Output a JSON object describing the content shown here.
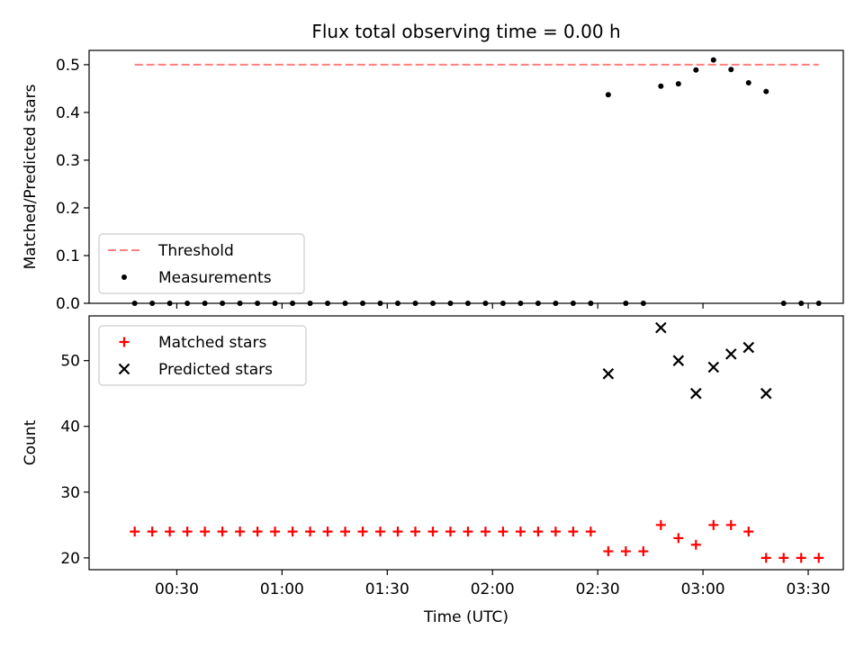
{
  "chart_data": {
    "type": "scatter",
    "title": "Flux total observing time = 0.00 h",
    "xlabel": "Time (UTC)",
    "x_ticks": [
      "00:30",
      "01:00",
      "01:30",
      "02:00",
      "02:30",
      "03:00",
      "03:30"
    ],
    "x_range": [
      "00:05",
      "03:40"
    ],
    "panels": [
      {
        "ylabel": "Matched/Predicted stars",
        "ylim": [
          0.0,
          0.53
        ],
        "y_ticks": [
          "0.0",
          "0.1",
          "0.2",
          "0.3",
          "0.4",
          "0.5"
        ],
        "legend_position": "lower-left",
        "series": [
          {
            "name": "Threshold",
            "type": "line",
            "style": "dashed",
            "color": "#ff7f7f",
            "points": [
              {
                "x": "00:18",
                "y": 0.5
              },
              {
                "x": "03:33",
                "y": 0.5
              }
            ]
          },
          {
            "name": "Measurements",
            "type": "scatter",
            "marker": "dot",
            "color": "#000000",
            "points": [
              {
                "x": "00:18",
                "y": 0.0
              },
              {
                "x": "00:23",
                "y": 0.0
              },
              {
                "x": "00:28",
                "y": 0.0
              },
              {
                "x": "00:33",
                "y": 0.0
              },
              {
                "x": "00:38",
                "y": 0.0
              },
              {
                "x": "00:43",
                "y": 0.0
              },
              {
                "x": "00:48",
                "y": 0.0
              },
              {
                "x": "00:53",
                "y": 0.0
              },
              {
                "x": "00:58",
                "y": 0.0
              },
              {
                "x": "01:03",
                "y": 0.0
              },
              {
                "x": "01:08",
                "y": 0.0
              },
              {
                "x": "01:13",
                "y": 0.0
              },
              {
                "x": "01:18",
                "y": 0.0
              },
              {
                "x": "01:23",
                "y": 0.0
              },
              {
                "x": "01:28",
                "y": 0.0
              },
              {
                "x": "01:33",
                "y": 0.0
              },
              {
                "x": "01:38",
                "y": 0.0
              },
              {
                "x": "01:43",
                "y": 0.0
              },
              {
                "x": "01:48",
                "y": 0.0
              },
              {
                "x": "01:53",
                "y": 0.0
              },
              {
                "x": "01:58",
                "y": 0.0
              },
              {
                "x": "02:03",
                "y": 0.0
              },
              {
                "x": "02:08",
                "y": 0.0
              },
              {
                "x": "02:13",
                "y": 0.0
              },
              {
                "x": "02:18",
                "y": 0.0
              },
              {
                "x": "02:23",
                "y": 0.0
              },
              {
                "x": "02:28",
                "y": 0.0
              },
              {
                "x": "02:33",
                "y": 0.437
              },
              {
                "x": "02:38",
                "y": 0.0
              },
              {
                "x": "02:43",
                "y": 0.0
              },
              {
                "x": "02:48",
                "y": 0.455
              },
              {
                "x": "02:53",
                "y": 0.46
              },
              {
                "x": "02:58",
                "y": 0.489
              },
              {
                "x": "03:03",
                "y": 0.51
              },
              {
                "x": "03:08",
                "y": 0.49
              },
              {
                "x": "03:13",
                "y": 0.462
              },
              {
                "x": "03:18",
                "y": 0.444
              },
              {
                "x": "03:23",
                "y": 0.0
              },
              {
                "x": "03:28",
                "y": 0.0
              },
              {
                "x": "03:33",
                "y": 0.0
              }
            ]
          }
        ]
      },
      {
        "ylabel": "Count",
        "ylim": [
          18.2,
          56.8
        ],
        "y_ticks": [
          "20",
          "30",
          "40",
          "50"
        ],
        "legend_position": "upper-left",
        "series": [
          {
            "name": "Matched stars",
            "type": "scatter",
            "marker": "plus",
            "color": "#ff0000",
            "points": [
              {
                "x": "00:18",
                "y": 24
              },
              {
                "x": "00:23",
                "y": 24
              },
              {
                "x": "00:28",
                "y": 24
              },
              {
                "x": "00:33",
                "y": 24
              },
              {
                "x": "00:38",
                "y": 24
              },
              {
                "x": "00:43",
                "y": 24
              },
              {
                "x": "00:48",
                "y": 24
              },
              {
                "x": "00:53",
                "y": 24
              },
              {
                "x": "00:58",
                "y": 24
              },
              {
                "x": "01:03",
                "y": 24
              },
              {
                "x": "01:08",
                "y": 24
              },
              {
                "x": "01:13",
                "y": 24
              },
              {
                "x": "01:18",
                "y": 24
              },
              {
                "x": "01:23",
                "y": 24
              },
              {
                "x": "01:28",
                "y": 24
              },
              {
                "x": "01:33",
                "y": 24
              },
              {
                "x": "01:38",
                "y": 24
              },
              {
                "x": "01:43",
                "y": 24
              },
              {
                "x": "01:48",
                "y": 24
              },
              {
                "x": "01:53",
                "y": 24
              },
              {
                "x": "01:58",
                "y": 24
              },
              {
                "x": "02:03",
                "y": 24
              },
              {
                "x": "02:08",
                "y": 24
              },
              {
                "x": "02:13",
                "y": 24
              },
              {
                "x": "02:18",
                "y": 24
              },
              {
                "x": "02:23",
                "y": 24
              },
              {
                "x": "02:28",
                "y": 24
              },
              {
                "x": "02:33",
                "y": 21
              },
              {
                "x": "02:38",
                "y": 21
              },
              {
                "x": "02:43",
                "y": 21
              },
              {
                "x": "02:48",
                "y": 25
              },
              {
                "x": "02:53",
                "y": 23
              },
              {
                "x": "02:58",
                "y": 22
              },
              {
                "x": "03:03",
                "y": 25
              },
              {
                "x": "03:08",
                "y": 25
              },
              {
                "x": "03:13",
                "y": 24
              },
              {
                "x": "03:18",
                "y": 20
              },
              {
                "x": "03:23",
                "y": 20
              },
              {
                "x": "03:28",
                "y": 20
              },
              {
                "x": "03:33",
                "y": 20
              }
            ]
          },
          {
            "name": "Predicted stars",
            "type": "scatter",
            "marker": "x",
            "color": "#000000",
            "points": [
              {
                "x": "02:33",
                "y": 48
              },
              {
                "x": "02:48",
                "y": 55
              },
              {
                "x": "02:53",
                "y": 50
              },
              {
                "x": "02:58",
                "y": 45
              },
              {
                "x": "03:03",
                "y": 49
              },
              {
                "x": "03:08",
                "y": 51
              },
              {
                "x": "03:13",
                "y": 52
              },
              {
                "x": "03:18",
                "y": 45
              }
            ]
          }
        ]
      }
    ]
  }
}
